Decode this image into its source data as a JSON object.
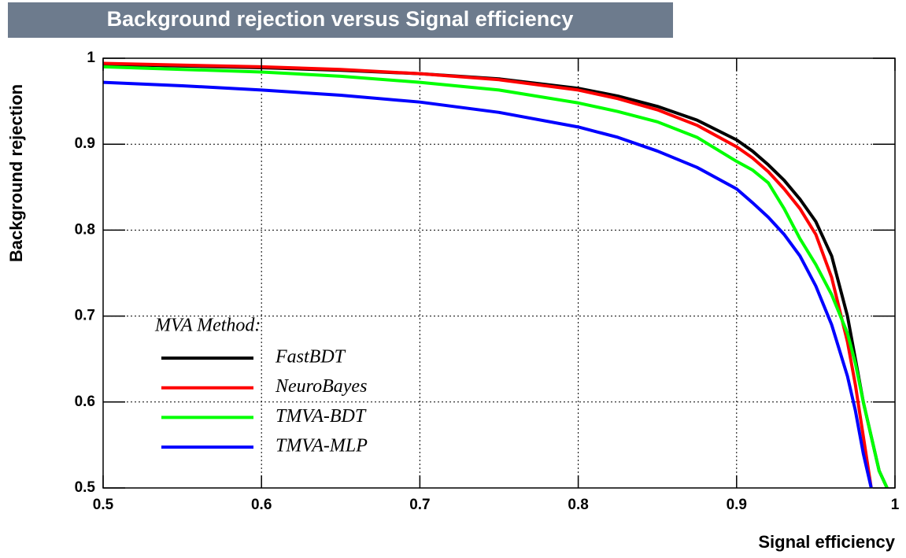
{
  "chart_data": {
    "type": "line",
    "title": "Background rejection versus Signal efficiency",
    "x_label": "Signal efficiency",
    "y_label": "Background rejection",
    "legend_title": "MVA Method:",
    "x": [
      0.5,
      0.55,
      0.6,
      0.65,
      0.7,
      0.75,
      0.8,
      0.825,
      0.85,
      0.875,
      0.9,
      0.91,
      0.92,
      0.93,
      0.94,
      0.95,
      0.96,
      0.97,
      0.975,
      0.98,
      0.985,
      0.99,
      0.995
    ],
    "series": [
      {
        "name": "FastBDT",
        "color": "#000000",
        "values": [
          0.993,
          0.991,
          0.989,
          0.986,
          0.982,
          0.976,
          0.965,
          0.956,
          0.944,
          0.928,
          0.905,
          0.892,
          0.876,
          0.858,
          0.836,
          0.81,
          0.77,
          0.7,
          0.65,
          0.6,
          0.56,
          0.52,
          0.5
        ]
      },
      {
        "name": "NeuroBayes",
        "color": "#ff0000",
        "values": [
          0.994,
          0.992,
          0.99,
          0.987,
          0.982,
          0.975,
          0.963,
          0.953,
          0.94,
          0.922,
          0.897,
          0.884,
          0.868,
          0.848,
          0.825,
          0.795,
          0.745,
          0.67,
          0.62,
          0.56,
          0.5,
          null,
          null
        ]
      },
      {
        "name": "TMVA-BDT",
        "color": "#00ff00",
        "values": [
          0.99,
          0.987,
          0.984,
          0.979,
          0.972,
          0.963,
          0.948,
          0.938,
          0.926,
          0.908,
          0.88,
          0.87,
          0.855,
          0.825,
          0.79,
          0.76,
          0.725,
          0.68,
          0.645,
          0.6,
          0.56,
          0.52,
          0.5
        ]
      },
      {
        "name": "TMVA-MLP",
        "color": "#0000ff",
        "values": [
          0.972,
          0.968,
          0.963,
          0.957,
          0.949,
          0.937,
          0.92,
          0.908,
          0.892,
          0.873,
          0.848,
          0.832,
          0.815,
          0.795,
          0.77,
          0.735,
          0.69,
          0.63,
          0.59,
          0.54,
          0.5,
          null,
          null
        ]
      }
    ],
    "xlim": [
      0.5,
      1
    ],
    "xticks": [
      0.5,
      0.6,
      0.7,
      0.8,
      0.9,
      1
    ],
    "ylim": [
      0.5,
      1
    ],
    "yticks": [
      0.5,
      0.6,
      0.7,
      0.8,
      0.9,
      1
    ],
    "grid": true
  }
}
